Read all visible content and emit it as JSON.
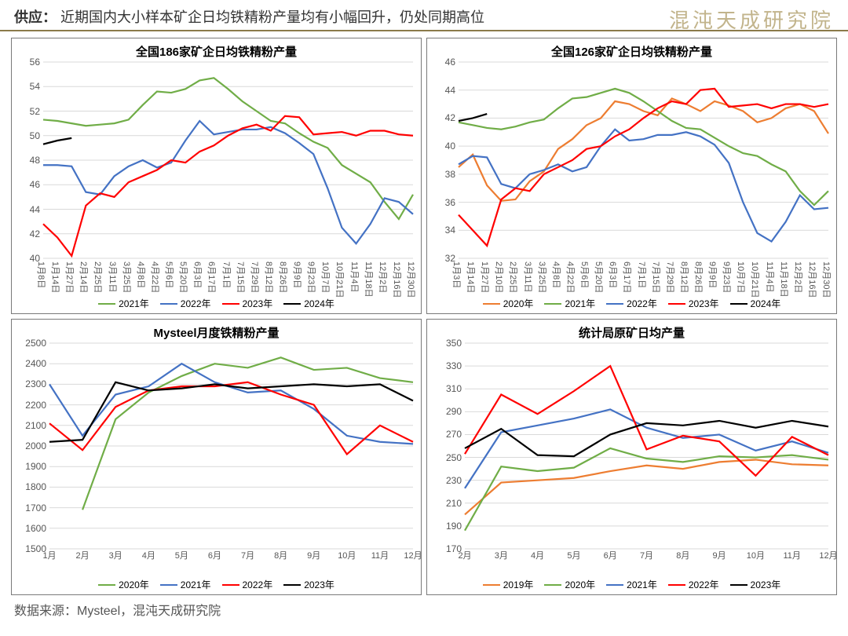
{
  "header": {
    "label": "供应：",
    "text": "近期国内大小样本矿企日均铁精粉产量均有小幅回升，仍处同期高位"
  },
  "watermark": "混沌天成研究院",
  "footer": "数据来源：Mysteel，混沌天成研究院",
  "colors": {
    "green": "#70ad47",
    "blue": "#4472c4",
    "red": "#ff0000",
    "black": "#000000",
    "orange": "#ed7d31",
    "grid": "#d9d9d9",
    "border": "#7a7a7a"
  },
  "charts": [
    {
      "id": "c1",
      "title": "全国186家矿企日均铁精粉产量",
      "ylim": [
        40,
        56
      ],
      "ytick_step": 2,
      "xticks": [
        "1月8日",
        "1月14日",
        "1月27日",
        "2月14日",
        "2月25日",
        "3月11日",
        "3月25日",
        "4月8日",
        "4月22日",
        "5月6日",
        "5月20日",
        "6月3日",
        "6月17日",
        "7月1日",
        "7月15日",
        "7月29日",
        "8月12日",
        "8月26日",
        "9月9日",
        "9月23日",
        "10月7日",
        "10月21日",
        "11月4日",
        "11月18日",
        "12月2日",
        "12月16日",
        "12月30日"
      ],
      "xrot": true,
      "series": [
        {
          "name": "2021年",
          "color": "green",
          "data": [
            51.3,
            51.2,
            51.0,
            50.8,
            50.9,
            51.0,
            51.3,
            52.5,
            53.6,
            53.5,
            53.8,
            54.5,
            54.7,
            53.8,
            52.8,
            52.0,
            51.2,
            51.0,
            50.2,
            49.5,
            49.0,
            47.6,
            46.9,
            46.2,
            44.6,
            43.2,
            45.2
          ]
        },
        {
          "name": "2022年",
          "color": "blue",
          "data": [
            47.6,
            47.6,
            47.5,
            45.4,
            45.2,
            46.7,
            47.5,
            48.0,
            47.4,
            47.8,
            49.6,
            51.2,
            50.1,
            50.3,
            50.5,
            50.5,
            50.7,
            50.2,
            49.4,
            48.5,
            45.7,
            42.5,
            41.2,
            42.8,
            44.9,
            44.6,
            43.6
          ]
        },
        {
          "name": "2023年",
          "color": "red",
          "data": [
            42.8,
            41.7,
            40.2,
            44.3,
            45.3,
            45.0,
            46.2,
            46.7,
            47.2,
            48.0,
            47.8,
            48.7,
            49.2,
            50.0,
            50.6,
            50.9,
            50.4,
            51.6,
            51.5,
            50.1,
            50.2,
            50.3,
            50.0,
            50.4,
            50.4,
            50.1,
            50.0
          ]
        },
        {
          "name": "2024年",
          "color": "black",
          "data": [
            49.3,
            49.6,
            49.8
          ]
        }
      ]
    },
    {
      "id": "c2",
      "title": "全国126家矿企日均铁精粉产量",
      "ylim": [
        32,
        46
      ],
      "ytick_step": 2,
      "xticks": [
        "1月3日",
        "1月14日",
        "1月27日",
        "2月10日",
        "2月25日",
        "3月11日",
        "3月25日",
        "4月8日",
        "4月22日",
        "5月6日",
        "5月20日",
        "6月3日",
        "6月17日",
        "7月1日",
        "7月15日",
        "7月29日",
        "8月12日",
        "8月26日",
        "9月9日",
        "9月23日",
        "10月7日",
        "10月21日",
        "11月4日",
        "11月18日",
        "12月2日",
        "12月16日",
        "12月30日"
      ],
      "xrot": true,
      "series": [
        {
          "name": "2020年",
          "color": "orange",
          "data": [
            38.5,
            39.4,
            37.2,
            36.1,
            36.2,
            37.5,
            38.2,
            39.8,
            40.5,
            41.5,
            42.0,
            43.2,
            43.0,
            42.5,
            42.2,
            43.4,
            43.0,
            42.5,
            43.2,
            42.9,
            42.5,
            41.7,
            42.0,
            42.7,
            43.0,
            42.5,
            40.9
          ]
        },
        {
          "name": "2021年",
          "color": "green",
          "data": [
            41.7,
            41.5,
            41.3,
            41.2,
            41.4,
            41.7,
            41.9,
            42.7,
            43.4,
            43.5,
            43.8,
            44.1,
            43.8,
            43.2,
            42.5,
            41.8,
            41.3,
            41.2,
            40.6,
            40.0,
            39.5,
            39.3,
            38.7,
            38.2,
            36.8,
            35.8,
            36.8
          ]
        },
        {
          "name": "2022年",
          "color": "blue",
          "data": [
            38.7,
            39.3,
            39.2,
            37.3,
            37.0,
            38.0,
            38.3,
            38.7,
            38.2,
            38.5,
            40.0,
            41.2,
            40.4,
            40.5,
            40.8,
            40.8,
            41.0,
            40.7,
            40.1,
            38.8,
            36.0,
            33.8,
            33.2,
            34.6,
            36.5,
            35.5,
            35.6
          ]
        },
        {
          "name": "2023年",
          "color": "red",
          "data": [
            35.1,
            34.0,
            32.9,
            36.2,
            37.0,
            36.8,
            38.0,
            38.5,
            39.0,
            39.8,
            40.0,
            40.7,
            41.2,
            42.0,
            42.7,
            43.2,
            43.0,
            44.0,
            44.1,
            42.8,
            42.9,
            43.0,
            42.7,
            43.0,
            43.0,
            42.8,
            43.0
          ]
        },
        {
          "name": "2024年",
          "color": "black",
          "data": [
            41.8,
            42.0,
            42.3
          ]
        }
      ]
    },
    {
      "id": "c3",
      "title": "Mysteel月度铁精粉产量",
      "ylim": [
        1500,
        2500
      ],
      "ytick_step": 100,
      "xticks": [
        "1月",
        "2月",
        "3月",
        "4月",
        "5月",
        "6月",
        "7月",
        "8月",
        "9月",
        "10月",
        "11月",
        "12月"
      ],
      "xrot": false,
      "series": [
        {
          "name": "2020年",
          "color": "green",
          "data": [
            null,
            1690,
            2130,
            2260,
            2340,
            2400,
            2380,
            2430,
            2370,
            2380,
            2330,
            2310
          ]
        },
        {
          "name": "2021年",
          "color": "blue",
          "data": [
            2300,
            2050,
            2250,
            2290,
            2400,
            2310,
            2260,
            2270,
            2180,
            2050,
            2020,
            2010
          ]
        },
        {
          "name": "2022年",
          "color": "red",
          "data": [
            2110,
            1980,
            2190,
            2270,
            2290,
            2290,
            2310,
            2250,
            2200,
            1960,
            2100,
            2020
          ]
        },
        {
          "name": "2023年",
          "color": "black",
          "data": [
            2020,
            2030,
            2310,
            2270,
            2280,
            2300,
            2280,
            2290,
            2300,
            2290,
            2300,
            2220
          ]
        }
      ]
    },
    {
      "id": "c4",
      "title": "统计局原矿日均产量",
      "ylim": [
        170,
        350
      ],
      "ytick_step": 20,
      "xticks": [
        "2月",
        "3月",
        "4月",
        "5月",
        "6月",
        "7月",
        "8月",
        "9月",
        "10月",
        "11月",
        "12月"
      ],
      "xrot": false,
      "series": [
        {
          "name": "2019年",
          "color": "orange",
          "data": [
            200,
            228,
            230,
            232,
            238,
            243,
            240,
            246,
            248,
            244,
            243
          ]
        },
        {
          "name": "2020年",
          "color": "green",
          "data": [
            186,
            242,
            238,
            241,
            258,
            249,
            246,
            251,
            250,
            252,
            248
          ]
        },
        {
          "name": "2021年",
          "color": "blue",
          "data": [
            223,
            272,
            278,
            284,
            292,
            276,
            267,
            270,
            256,
            264,
            254
          ]
        },
        {
          "name": "2022年",
          "color": "red",
          "data": [
            253,
            305,
            288,
            308,
            330,
            257,
            269,
            264,
            234,
            268,
            252
          ]
        },
        {
          "name": "2023年",
          "color": "black",
          "data": [
            258,
            275,
            252,
            251,
            270,
            280,
            278,
            282,
            276,
            282,
            277
          ]
        }
      ]
    }
  ]
}
